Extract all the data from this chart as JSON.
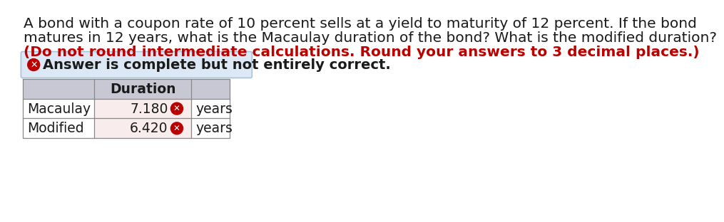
{
  "question_line1": "A bond with a coupon rate of 10 percent sells at a yield to maturity of 12 percent. If the bond",
  "question_line2": "matures in 12 years, what is the Macaulay duration of the bond? What is the modified duration?",
  "question_line3": "(Do not round intermediate calculations. Round your answers to 3 decimal places.)",
  "answer_banner": "Answer is complete but not entirely correct.",
  "col_header": "Duration",
  "row_labels": [
    "Macaulay",
    "Modified"
  ],
  "values": [
    "7.180",
    "6.420"
  ],
  "unit": "years",
  "bg_color": "#ffffff",
  "text_color": "#1a1a1a",
  "red_color": "#bb0000",
  "banner_bg": "#dce8f5",
  "banner_border": "#a8c4dc",
  "table_header_bg": "#c8c8d4",
  "table_row_value_bg": "#f8ecec",
  "table_row_label_bg": "#ffffff",
  "table_border": "#888888",
  "font_size_question": 14.5,
  "font_size_red": 14.5,
  "font_size_banner": 14.0,
  "font_size_table": 13.5
}
